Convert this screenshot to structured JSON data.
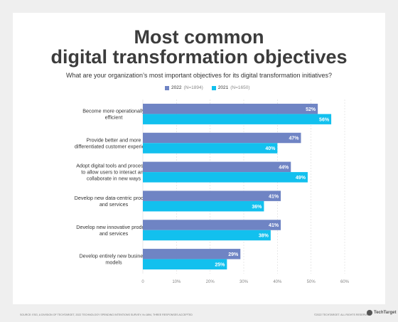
{
  "title_line1": "Most common",
  "title_line2": "digital transformation objectives",
  "subtitle": "What are your organization’s most important objectives for its digital transformation initiatives?",
  "legend": [
    {
      "year": "2022",
      "n": "(N=1894)",
      "color": "#6f84c4"
    },
    {
      "year": "2021",
      "n": "(N=1650)",
      "color": "#12c0ee"
    }
  ],
  "footer_left": "SOURCE: ESG, A DIVISION OF TECHTARGET, 2022 TECHNOLOGY SPENDING INTENTIONS SURVEY; N=1894, THREE RESPONSES ACCEPTED",
  "footer_right": "©2022 TECHTARGET. ALL RIGHTS RESERVED",
  "logo_text": "TechTarget",
  "chart_data": {
    "type": "bar",
    "orientation": "horizontal",
    "categories": [
      [
        "Become more operationally",
        "efficient"
      ],
      [
        "Provide better and more",
        "differentiated customer experience"
      ],
      [
        "Adopt digital tools and processes",
        "to allow users to interact and",
        "collaborate in new ways"
      ],
      [
        "Develop new data-centric products",
        "and services"
      ],
      [
        "Develop new innovative products",
        "and services"
      ],
      [
        "Develop entirely new business",
        "models"
      ]
    ],
    "series": [
      {
        "name": "2022",
        "color": "#6f84c4",
        "values": [
          52,
          47,
          44,
          41,
          41,
          29
        ],
        "labels": [
          "52%",
          "47%",
          "44%",
          "41%",
          "41%",
          "29%"
        ]
      },
      {
        "name": "2021",
        "color": "#12c0ee",
        "values": [
          56,
          40,
          49,
          36,
          38,
          25
        ],
        "labels": [
          "56%",
          "40%",
          "49%",
          "36%",
          "38%",
          "25%"
        ]
      }
    ],
    "xlim": [
      0,
      60
    ],
    "xticks": [
      "0",
      "10%",
      "20%",
      "30%",
      "40%",
      "50%",
      "60%"
    ],
    "grid": true
  }
}
